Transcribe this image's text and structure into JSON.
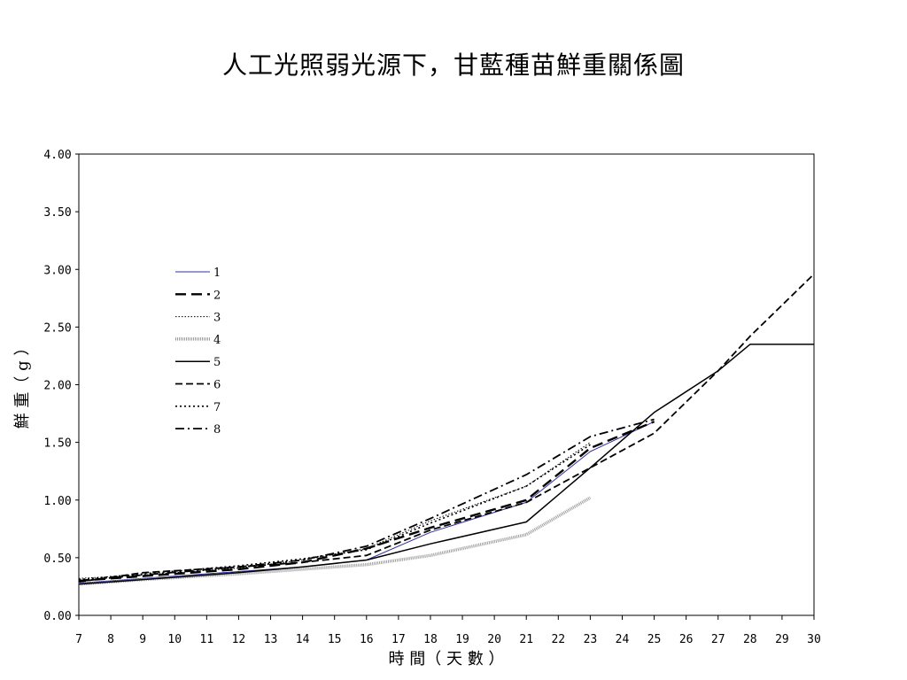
{
  "title": "人工光照弱光源下，甘藍種苗鮮重關係圖",
  "chart_data": {
    "type": "line",
    "title": "人工光照弱光源下，甘藍種苗鮮重關係圖",
    "xlabel": "時 間（ 天 數 ）",
    "ylabel": "鮮 重（ g ）",
    "xlim": [
      7,
      30
    ],
    "ylim": [
      0,
      4
    ],
    "x_ticks": [
      "7",
      "8",
      "9",
      "10",
      "11",
      "12",
      "13",
      "14",
      "15",
      "16",
      "17",
      "18",
      "19",
      "20",
      "21",
      "22",
      "23",
      "24",
      "25",
      "26",
      "27",
      "28",
      "29",
      "30"
    ],
    "y_ticks": [
      "0.00",
      "0.50",
      "1.00",
      "1.50",
      "2.00",
      "2.50",
      "3.00",
      "3.50",
      "4.00"
    ],
    "grid": false,
    "legend_position": "left",
    "series": [
      {
        "name": "1",
        "style": "solid-blue",
        "points": [
          [
            7,
            0.28
          ],
          [
            9,
            0.32
          ],
          [
            12,
            0.38
          ],
          [
            14,
            0.42
          ],
          [
            16,
            0.48
          ],
          [
            18,
            0.72
          ],
          [
            21,
            0.98
          ],
          [
            23,
            1.42
          ],
          [
            25,
            1.68
          ]
        ]
      },
      {
        "name": "2",
        "style": "dash-long-thick",
        "points": [
          [
            7,
            0.3
          ],
          [
            9,
            0.34
          ],
          [
            12,
            0.4
          ],
          [
            14,
            0.46
          ],
          [
            16,
            0.58
          ],
          [
            18,
            0.76
          ],
          [
            21,
            1.0
          ],
          [
            23,
            1.45
          ],
          [
            25,
            1.68
          ]
        ]
      },
      {
        "name": "3",
        "style": "dot-fine",
        "points": [
          [
            7,
            0.32
          ],
          [
            9,
            0.35
          ],
          [
            12,
            0.41
          ],
          [
            14,
            0.48
          ],
          [
            16,
            0.58
          ],
          [
            18,
            0.82
          ],
          [
            21,
            1.12
          ],
          [
            23,
            1.5
          ]
        ]
      },
      {
        "name": "4",
        "style": "gray-thick",
        "points": [
          [
            7,
            0.27
          ],
          [
            9,
            0.31
          ],
          [
            12,
            0.36
          ],
          [
            14,
            0.4
          ],
          [
            16,
            0.44
          ],
          [
            18,
            0.52
          ],
          [
            21,
            0.7
          ],
          [
            23,
            1.02
          ]
        ]
      },
      {
        "name": "5",
        "style": "solid-black",
        "points": [
          [
            7,
            0.27
          ],
          [
            9,
            0.31
          ],
          [
            12,
            0.37
          ],
          [
            14,
            0.42
          ],
          [
            16,
            0.48
          ],
          [
            18,
            0.62
          ],
          [
            21,
            0.81
          ],
          [
            23,
            1.28
          ],
          [
            25,
            1.76
          ],
          [
            27,
            2.12
          ],
          [
            28,
            2.35
          ],
          [
            30,
            2.35
          ]
        ]
      },
      {
        "name": "6",
        "style": "dash-medium",
        "points": [
          [
            7,
            0.29
          ],
          [
            9,
            0.37
          ],
          [
            12,
            0.42
          ],
          [
            14,
            0.46
          ],
          [
            16,
            0.52
          ],
          [
            18,
            0.74
          ],
          [
            21,
            0.98
          ],
          [
            23,
            1.28
          ],
          [
            25,
            1.58
          ],
          [
            27,
            2.12
          ],
          [
            28,
            2.42
          ],
          [
            30,
            2.96
          ]
        ]
      },
      {
        "name": "7",
        "style": "dot-medium",
        "points": [
          [
            7,
            0.31
          ],
          [
            9,
            0.36
          ],
          [
            12,
            0.43
          ],
          [
            14,
            0.49
          ],
          [
            16,
            0.57
          ],
          [
            18,
            0.8
          ],
          [
            21,
            1.12
          ],
          [
            23,
            1.48
          ]
        ]
      },
      {
        "name": "8",
        "style": "dash-dot",
        "points": [
          [
            7,
            0.3
          ],
          [
            9,
            0.35
          ],
          [
            12,
            0.42
          ],
          [
            14,
            0.48
          ],
          [
            16,
            0.6
          ],
          [
            18,
            0.84
          ],
          [
            21,
            1.22
          ],
          [
            23,
            1.55
          ],
          [
            25,
            1.7
          ]
        ]
      }
    ]
  }
}
